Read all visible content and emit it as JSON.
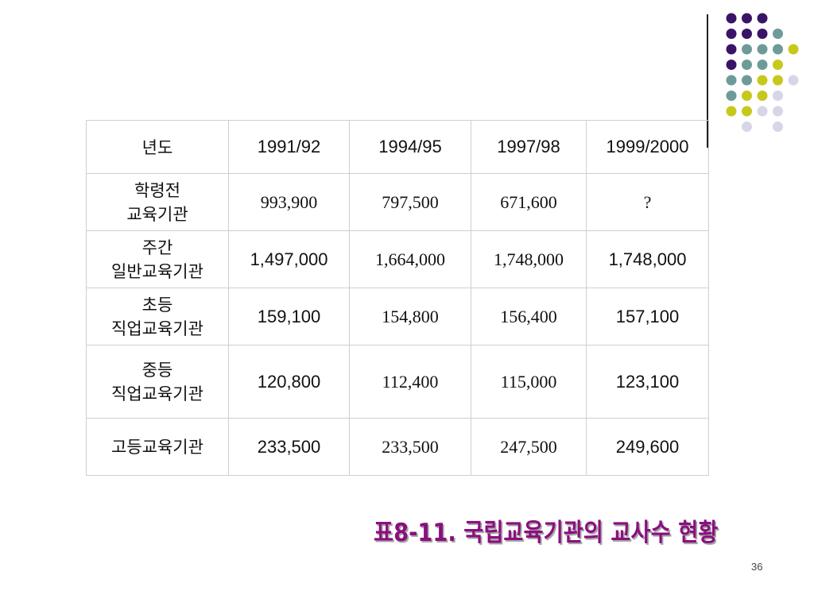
{
  "decoration": {
    "dot_colors": {
      "purple": "#3a1466",
      "teal": "#6e9a9a",
      "yellow": "#c8c81c",
      "lavender": "#d6d6e8"
    },
    "dot_grid": [
      [
        "purple",
        "purple",
        "purple",
        null,
        null
      ],
      [
        "purple",
        "purple",
        "purple",
        "teal",
        null
      ],
      [
        "purple",
        "teal",
        "teal",
        "teal",
        "yellow"
      ],
      [
        "purple",
        "teal",
        "teal",
        "yellow",
        null
      ],
      [
        "teal",
        "teal",
        "yellow",
        "yellow",
        "lavender"
      ],
      [
        "teal",
        "yellow",
        "yellow",
        "lavender",
        null
      ],
      [
        "yellow",
        "yellow",
        "lavender",
        "lavender",
        null
      ],
      [
        null,
        "lavender",
        null,
        "lavender",
        null
      ]
    ]
  },
  "table": {
    "headers": [
      "년도",
      "1991/92",
      "1994/95",
      "1997/98",
      "1999/2000"
    ],
    "rows": [
      {
        "label_line1": "학령전",
        "label_line2": "교육기관",
        "values": [
          "993,900",
          "797,500",
          "671,600",
          "?"
        ]
      },
      {
        "label_line1": "주간",
        "label_line2": "일반교육기관",
        "values": [
          "1,497,000",
          "1,664,000",
          "1,748,000",
          "1,748,000"
        ]
      },
      {
        "label_line1": "초등",
        "label_line2": "직업교육기관",
        "values": [
          "159,100",
          "154,800",
          "156,400",
          "157,100"
        ]
      },
      {
        "label_line1": "중등",
        "label_line2": "직업교육기관",
        "values": [
          "120,800",
          "112,400",
          "115,000",
          "123,100"
        ]
      },
      {
        "label_line1": "고등교육기관",
        "label_line2": "",
        "values": [
          "233,500",
          "233,500",
          "247,500",
          "249,600"
        ]
      }
    ]
  },
  "caption": "표8-11. 국립교육기관의 교사수 현황",
  "page_number": "36"
}
